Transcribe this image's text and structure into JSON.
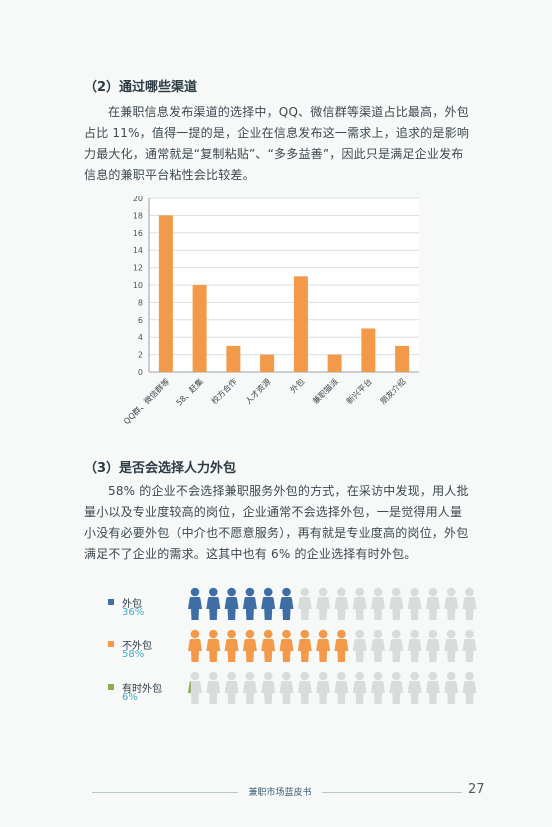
{
  "section2": {
    "heading": "（2）通过哪些渠道",
    "paragraph": "在兼职信息发布渠道的选择中，QQ、微信群等渠道占比最高，外包占比 11%，值得一提的是，企业在信息发布这一需求上，追求的是影响力最大化，通常就是“复制粘贴”、“多多益善”，因此只是满足企业发布信息的兼职平台粘性会比较差。"
  },
  "chart_data": {
    "type": "bar",
    "categories": [
      "QQ群、微信群等",
      "58、赶集",
      "校方合作",
      "人才资源",
      "外包",
      "兼职猫派",
      "新兴平台",
      "朋友介绍"
    ],
    "values": [
      18,
      10,
      3,
      2,
      11,
      2,
      5,
      3
    ],
    "ylim": [
      0,
      20
    ],
    "yticks": [
      0,
      2,
      4,
      6,
      8,
      10,
      12,
      14,
      16,
      18,
      20
    ],
    "grid": true,
    "colors": {
      "bar": "#f29a4a",
      "axis": "#9aa4a8",
      "grid": "#d9dfe1"
    }
  },
  "section3": {
    "heading": "（3）是否会选择人力外包",
    "paragraph": "58% 的企业不会选择兼职服务外包的方式，在采访中发现，用人批量小以及专业度较高的岗位，企业通常不会选择外包，一是觉得用人量小没有必要外包（中介也不愿意服务），再有就是专业度高的岗位，外包满足不了企业的需求。这其中也有 6% 的企业选择有时外包。"
  },
  "pictogram": {
    "total_icons": 16,
    "items": [
      {
        "label": "外包",
        "percent": "36%",
        "filled": 6,
        "color": "#3e6ea3",
        "icon": "person-icon"
      },
      {
        "label": "不外包",
        "percent": "58%",
        "filled": 9,
        "color": "#f29a4a",
        "icon": "person-icon"
      },
      {
        "label": "有时外包",
        "percent": "6%",
        "filled": 0.5,
        "color": "#8cab4f",
        "icon": "person-icon"
      }
    ],
    "empty_color": "#d9dcdc"
  },
  "footer": {
    "title": "兼职市场蓝皮书",
    "page_number": "27"
  }
}
